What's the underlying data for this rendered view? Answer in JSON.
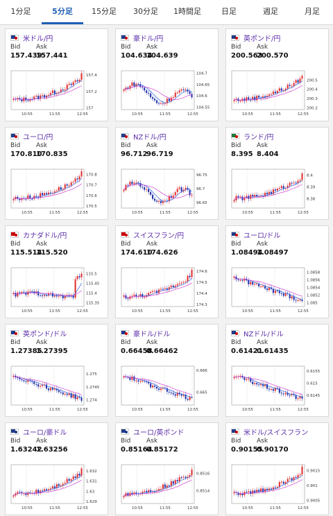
{
  "tabs": [
    {
      "label": "1分足",
      "active": false
    },
    {
      "label": "5分足",
      "active": true
    },
    {
      "label": "15分足",
      "active": false
    },
    {
      "label": "30分足",
      "active": false
    },
    {
      "label": "1時間足",
      "active": false
    },
    {
      "label": "日足",
      "active": false
    },
    {
      "label": "週足",
      "active": false
    },
    {
      "label": "月足",
      "active": false
    }
  ],
  "labels": {
    "bid": "Bid",
    "ask": "Ask"
  },
  "x_ticks": [
    "10:55",
    "11:55",
    "12:55"
  ],
  "pairs": [
    {
      "name": "米ドル/円",
      "flag": [
        "#1f3c88",
        "#cc0000"
      ],
      "bid": "157.439",
      "ask": "157.441",
      "ticks": [
        "157.4",
        "157.2",
        "157"
      ],
      "ylim": [
        156.98,
        157.45
      ],
      "trend": "up"
    },
    {
      "name": "豪ドル/円",
      "flag": [
        "#1f3c88",
        "#cc0000"
      ],
      "bid": "104.634",
      "ask": "104.639",
      "ticks": [
        "104.7",
        "104.65",
        "104.6",
        "104.55"
      ],
      "ylim": [
        104.54,
        104.71
      ],
      "trend": "mixed"
    },
    {
      "name": "英ポンド/円",
      "flag": [
        "#1f3c88",
        "#cc0000"
      ],
      "bid": "200.563",
      "ask": "200.570",
      "ticks": [
        "200.5",
        "200.4",
        "200.3",
        "200.2"
      ],
      "ylim": [
        200.18,
        200.6
      ],
      "trend": "up"
    },
    {
      "name": "ユーロ/円",
      "flag": [
        "#1f3c88",
        "#cc0000"
      ],
      "bid": "170.810",
      "ask": "170.835",
      "ticks": [
        "170.8",
        "170.7",
        "170.6",
        "170.5"
      ],
      "ylim": [
        170.48,
        170.85
      ],
      "trend": "up"
    },
    {
      "name": "NZドル/円",
      "flag": [
        "#1f3c88",
        "#cc0000"
      ],
      "bid": "96.712",
      "ask": "96.719",
      "ticks": [
        "96.75",
        "96.7",
        "96.65"
      ],
      "ylim": [
        96.63,
        96.77
      ],
      "trend": "mixed"
    },
    {
      "name": "ランド/円",
      "flag": [
        "#1f7a3a",
        "#cc0000"
      ],
      "bid": "8.395",
      "ask": "8.404",
      "ticks": [
        "8.4",
        "8.39",
        "8.38"
      ],
      "ylim": [
        8.372,
        8.405
      ],
      "trend": "up"
    },
    {
      "name": "カナダドル/円",
      "flag": [
        "#cc0000",
        "#cc0000"
      ],
      "bid": "115.514",
      "ask": "115.520",
      "ticks": [
        "115.5",
        "115.45",
        "115.4",
        "115.35"
      ],
      "ylim": [
        115.33,
        115.53
      ],
      "trend": "flatup"
    },
    {
      "name": "スイスフラン/円",
      "flag": [
        "#cc0000",
        "#cc0000"
      ],
      "bid": "174.610",
      "ask": "174.626",
      "ticks": [
        "174.6",
        "174.5",
        "174.4",
        "174.3"
      ],
      "ylim": [
        174.28,
        174.63
      ],
      "trend": "up"
    },
    {
      "name": "ユーロ/ドル",
      "flag": [
        "#1f3c88",
        "#cc0000"
      ],
      "bid": "1.08494",
      "ask": "1.08497",
      "ticks": [
        "1.0858",
        "1.0856",
        "1.0854",
        "1.0852",
        "1.085"
      ],
      "ylim": [
        1.0849,
        1.08592
      ],
      "trend": "down"
    },
    {
      "name": "英ポンド/ドル",
      "flag": [
        "#1f3c88",
        "#cc0000"
      ],
      "bid": "1.27385",
      "ask": "1.27395",
      "ticks": [
        "1.275",
        "1.2745",
        "1.274"
      ],
      "ylim": [
        1.2738,
        1.2753
      ],
      "trend": "down"
    },
    {
      "name": "豪ドル/ドル",
      "flag": [
        "#1f3c88",
        "#cc0000"
      ],
      "bid": "0.66458",
      "ask": "0.66462",
      "ticks": [
        "0.666",
        "0.665"
      ],
      "ylim": [
        0.6644,
        0.6662
      ],
      "trend": "down"
    },
    {
      "name": "NZドル/ドル",
      "flag": [
        "#1f3c88",
        "#cc0000"
      ],
      "bid": "0.61421",
      "ask": "0.61435",
      "ticks": [
        "0.6155",
        "0.615",
        "0.6145"
      ],
      "ylim": [
        0.6141,
        0.6157
      ],
      "trend": "down"
    },
    {
      "name": "ユーロ/豪ドル",
      "flag": [
        "#1f3c88",
        "#1f3c88"
      ],
      "bid": "1.63242",
      "ask": "1.63256",
      "ticks": [
        "1.632",
        "1.631",
        "1.63",
        "1.629"
      ],
      "ylim": [
        1.6288,
        1.6326
      ],
      "trend": "up"
    },
    {
      "name": "ユーロ/英ポンド",
      "flag": [
        "#1f3c88",
        "#1f3c88"
      ],
      "bid": "0.85164",
      "ask": "0.85172",
      "ticks": [
        "0.8516",
        "0.8514"
      ],
      "ylim": [
        0.85125,
        0.8517
      ],
      "trend": "up"
    },
    {
      "name": "米ドル/スイスフラン",
      "flag": [
        "#1f3c88",
        "#cc0000"
      ],
      "bid": "0.90155",
      "ask": "0.90170",
      "ticks": [
        "0.9015",
        "0.901",
        "0.9005"
      ],
      "ylim": [
        0.9004,
        0.9017
      ],
      "trend": "up"
    }
  ],
  "colors": {
    "up": "#e03030",
    "down": "#2233aa",
    "ma1": "#d040d0",
    "ma2": "#3366dd",
    "grid": "#bbbbbb"
  }
}
